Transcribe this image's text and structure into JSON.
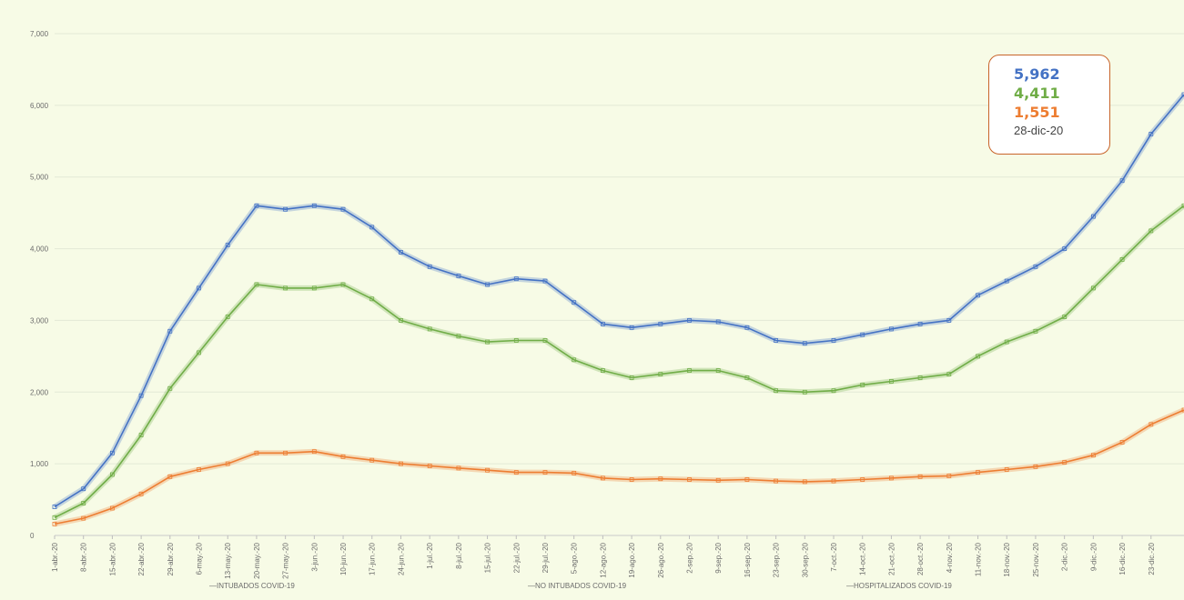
{
  "chart_data": {
    "type": "line",
    "yticks": [
      "0",
      "1,000",
      "2,000",
      "3,000",
      "4,000",
      "5,000",
      "6,000",
      "7,000"
    ],
    "ylim": [
      0,
      7000
    ],
    "xlim": [
      "2020-04-01",
      "2020-12-31"
    ],
    "xticks": [
      "1-abr.-20",
      "8-abr.-20",
      "15-abr.-20",
      "22-abr.-20",
      "29-abr.-20",
      "6-may.-20",
      "13-may.-20",
      "20-may.-20",
      "27-may.-20",
      "3-jun.-20",
      "10-jun.-20",
      "17-jun.-20",
      "24-jun.-20",
      "1-jul.-20",
      "8-jul.-20",
      "15-jul.-20",
      "22-jul.-20",
      "29-jul.-20",
      "5-ago.-20",
      "12-ago.-20",
      "19-ago.-20",
      "26-ago.-20",
      "2-sep.-20",
      "9-sep.-20",
      "16-sep.-20",
      "23-sep.-20",
      "30-sep.-20",
      "7-oct.-20",
      "14-oct.-20",
      "21-oct.-20",
      "28-oct.-20",
      "4-nov.-20",
      "11-nov.-20",
      "18-nov.-20",
      "25-nov.-20",
      "2-dic.-20",
      "9-dic.-20",
      "16-dic.-20",
      "23-dic.-20"
    ],
    "grid": true,
    "legend_position": "bottom",
    "series": [
      {
        "name": "HOSPITALIZADOS COVID-19",
        "color": "#4472c4",
        "x": [
          "2020-04-01",
          "2020-04-08",
          "2020-04-15",
          "2020-04-22",
          "2020-04-29",
          "2020-05-06",
          "2020-05-13",
          "2020-05-20",
          "2020-05-27",
          "2020-06-03",
          "2020-06-10",
          "2020-06-17",
          "2020-06-24",
          "2020-07-01",
          "2020-07-08",
          "2020-07-15",
          "2020-07-22",
          "2020-07-29",
          "2020-08-05",
          "2020-08-12",
          "2020-08-19",
          "2020-08-26",
          "2020-09-02",
          "2020-09-09",
          "2020-09-16",
          "2020-09-23",
          "2020-09-30",
          "2020-10-07",
          "2020-10-14",
          "2020-10-21",
          "2020-10-28",
          "2020-11-04",
          "2020-11-11",
          "2020-11-18",
          "2020-11-25",
          "2020-12-02",
          "2020-12-09",
          "2020-12-16",
          "2020-12-23",
          "2020-12-31"
        ],
        "values": [
          400,
          650,
          1150,
          1950,
          2850,
          3450,
          4050,
          4600,
          4550,
          4600,
          4550,
          4300,
          3950,
          3750,
          3620,
          3500,
          3580,
          3550,
          3250,
          2950,
          2900,
          2950,
          3000,
          2980,
          2900,
          2720,
          2680,
          2720,
          2800,
          2880,
          2950,
          3000,
          3350,
          3550,
          3750,
          4000,
          4450,
          4950,
          5600,
          6150
        ]
      },
      {
        "name": "NO INTUBADOS COVID-19",
        "color": "#70ad47",
        "x": [
          "2020-04-01",
          "2020-04-08",
          "2020-04-15",
          "2020-04-22",
          "2020-04-29",
          "2020-05-06",
          "2020-05-13",
          "2020-05-20",
          "2020-05-27",
          "2020-06-03",
          "2020-06-10",
          "2020-06-17",
          "2020-06-24",
          "2020-07-01",
          "2020-07-08",
          "2020-07-15",
          "2020-07-22",
          "2020-07-29",
          "2020-08-05",
          "2020-08-12",
          "2020-08-19",
          "2020-08-26",
          "2020-09-02",
          "2020-09-09",
          "2020-09-16",
          "2020-09-23",
          "2020-09-30",
          "2020-10-07",
          "2020-10-14",
          "2020-10-21",
          "2020-10-28",
          "2020-11-04",
          "2020-11-11",
          "2020-11-18",
          "2020-11-25",
          "2020-12-02",
          "2020-12-09",
          "2020-12-16",
          "2020-12-23",
          "2020-12-31"
        ],
        "values": [
          250,
          450,
          850,
          1400,
          2050,
          2550,
          3050,
          3500,
          3450,
          3450,
          3500,
          3300,
          3000,
          2880,
          2780,
          2700,
          2720,
          2720,
          2450,
          2300,
          2200,
          2250,
          2300,
          2300,
          2200,
          2020,
          2000,
          2020,
          2100,
          2150,
          2200,
          2250,
          2500,
          2700,
          2850,
          3050,
          3450,
          3850,
          4250,
          4600
        ]
      },
      {
        "name": "INTUBADOS COVID-19",
        "color": "#ed7d31",
        "x": [
          "2020-04-01",
          "2020-04-08",
          "2020-04-15",
          "2020-04-22",
          "2020-04-29",
          "2020-05-06",
          "2020-05-13",
          "2020-05-20",
          "2020-05-27",
          "2020-06-03",
          "2020-06-10",
          "2020-06-17",
          "2020-06-24",
          "2020-07-01",
          "2020-07-08",
          "2020-07-15",
          "2020-07-22",
          "2020-07-29",
          "2020-08-05",
          "2020-08-12",
          "2020-08-19",
          "2020-08-26",
          "2020-09-02",
          "2020-09-09",
          "2020-09-16",
          "2020-09-23",
          "2020-09-30",
          "2020-10-07",
          "2020-10-14",
          "2020-10-21",
          "2020-10-28",
          "2020-11-04",
          "2020-11-11",
          "2020-11-18",
          "2020-11-25",
          "2020-12-02",
          "2020-12-09",
          "2020-12-16",
          "2020-12-23",
          "2020-12-31"
        ],
        "values": [
          160,
          240,
          380,
          580,
          820,
          920,
          1000,
          1150,
          1150,
          1170,
          1100,
          1050,
          1000,
          970,
          940,
          910,
          880,
          880,
          870,
          800,
          780,
          790,
          780,
          770,
          780,
          760,
          750,
          760,
          780,
          800,
          820,
          830,
          880,
          920,
          960,
          1020,
          1120,
          1300,
          1550,
          1750
        ]
      }
    ],
    "legend": [
      "INTUBADOS COVID-19",
      "NO INTUBADOS COVID-19",
      "HOSPITALIZADOS COVID-19"
    ],
    "callout": {
      "values": [
        {
          "text": "5,962",
          "color": "#4472c4"
        },
        {
          "text": "4,411",
          "color": "#70ad47"
        },
        {
          "text": "1,551",
          "color": "#ed7d31"
        }
      ],
      "date": "28-dic-20"
    }
  }
}
